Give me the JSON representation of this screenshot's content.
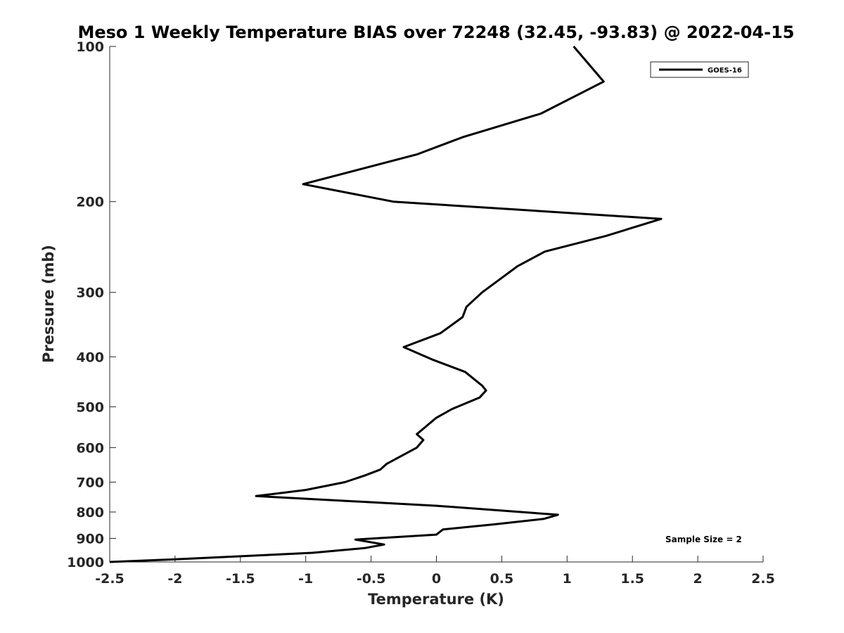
{
  "chart_data": {
    "type": "line",
    "title": "Meso 1 Weekly Temperature BIAS over 72248 (32.45, -93.83) @ 2022-04-15",
    "xlabel": "Temperature (K)",
    "ylabel": "Pressure (mb)",
    "xlim": [
      -2.5,
      2.5
    ],
    "ylim": [
      1000,
      100
    ],
    "y_scale": "log",
    "y_direction": "reverse",
    "xticks": [
      -2.5,
      -2,
      -1.5,
      -1,
      -0.5,
      0,
      0.5,
      1,
      1.5,
      2,
      2.5
    ],
    "xtick_labels": [
      "-2.5",
      "-2",
      "-1.5",
      "-1",
      "-0.5",
      "0",
      "0.5",
      "1",
      "1.5",
      "2",
      "2.5"
    ],
    "yticks": [
      100,
      200,
      300,
      400,
      500,
      600,
      700,
      800,
      900,
      1000
    ],
    "ytick_labels": [
      "100",
      "200",
      "300",
      "400",
      "500",
      "600",
      "700",
      "800",
      "900",
      "1000"
    ],
    "grid": false,
    "legend_position": "top-right",
    "series": [
      {
        "name": "GOES-16",
        "color": "#000000",
        "points": [
          {
            "x": 1.05,
            "y": 100
          },
          {
            "x": 1.28,
            "y": 117
          },
          {
            "x": 0.8,
            "y": 135
          },
          {
            "x": 0.2,
            "y": 150
          },
          {
            "x": -0.15,
            "y": 162
          },
          {
            "x": -1.02,
            "y": 185
          },
          {
            "x": -0.33,
            "y": 200
          },
          {
            "x": 1.72,
            "y": 216
          },
          {
            "x": 1.3,
            "y": 233
          },
          {
            "x": 0.83,
            "y": 250
          },
          {
            "x": 0.62,
            "y": 267
          },
          {
            "x": 0.35,
            "y": 300
          },
          {
            "x": 0.23,
            "y": 320
          },
          {
            "x": 0.2,
            "y": 335
          },
          {
            "x": 0.03,
            "y": 360
          },
          {
            "x": -0.25,
            "y": 383
          },
          {
            "x": -0.03,
            "y": 405
          },
          {
            "x": 0.22,
            "y": 428
          },
          {
            "x": 0.35,
            "y": 455
          },
          {
            "x": 0.38,
            "y": 465
          },
          {
            "x": 0.33,
            "y": 480
          },
          {
            "x": 0.12,
            "y": 505
          },
          {
            "x": 0.0,
            "y": 525
          },
          {
            "x": -0.15,
            "y": 565
          },
          {
            "x": -0.1,
            "y": 580
          },
          {
            "x": -0.15,
            "y": 600
          },
          {
            "x": -0.28,
            "y": 625
          },
          {
            "x": -0.38,
            "y": 645
          },
          {
            "x": -0.43,
            "y": 662
          },
          {
            "x": -0.55,
            "y": 680
          },
          {
            "x": -0.7,
            "y": 700
          },
          {
            "x": -1.0,
            "y": 725
          },
          {
            "x": -1.38,
            "y": 745
          },
          {
            "x": 0.0,
            "y": 778
          },
          {
            "x": 0.93,
            "y": 810
          },
          {
            "x": 0.82,
            "y": 825
          },
          {
            "x": 0.45,
            "y": 845
          },
          {
            "x": 0.05,
            "y": 865
          },
          {
            "x": 0.0,
            "y": 885
          },
          {
            "x": -0.62,
            "y": 905
          },
          {
            "x": -0.4,
            "y": 925
          },
          {
            "x": -0.55,
            "y": 940
          },
          {
            "x": -0.95,
            "y": 960
          },
          {
            "x": -1.5,
            "y": 975
          },
          {
            "x": -2.0,
            "y": 988
          },
          {
            "x": -2.5,
            "y": 1000
          }
        ]
      }
    ],
    "annotation": "Sample Size = 2"
  }
}
